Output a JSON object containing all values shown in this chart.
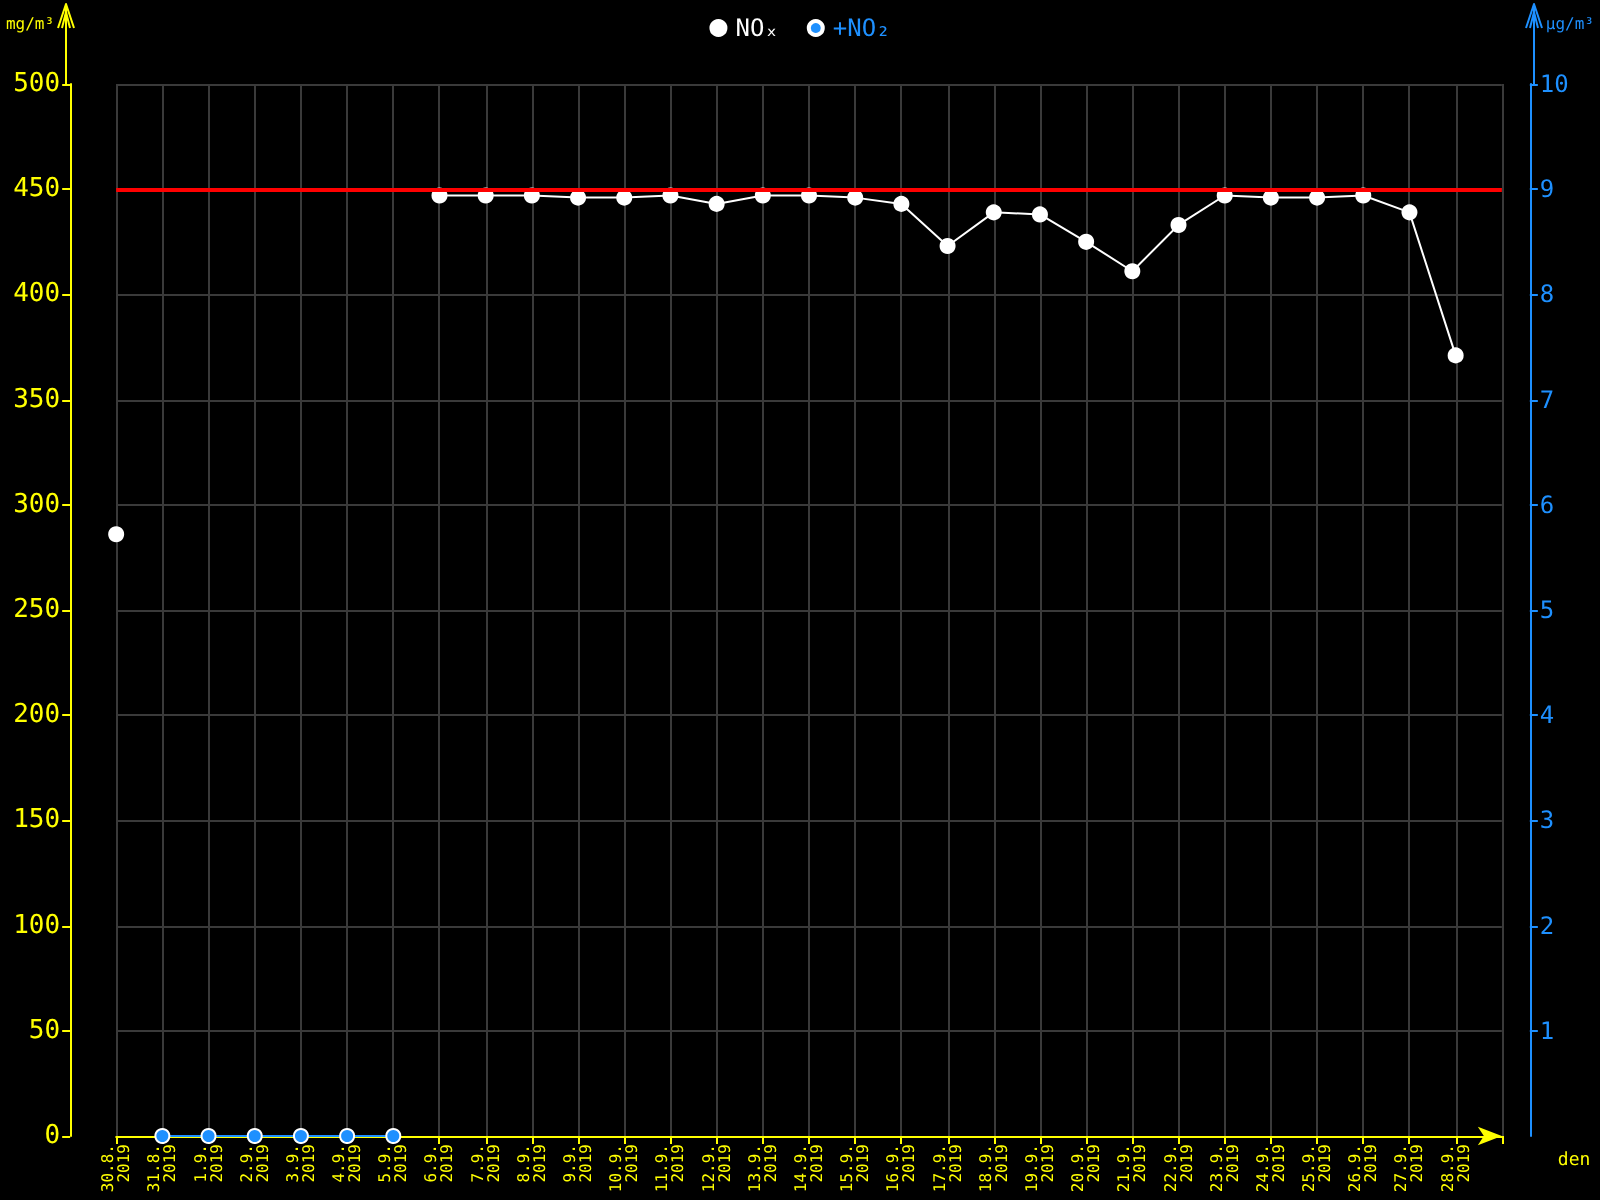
{
  "chart_data": {
    "type": "line",
    "xlabel": "den",
    "ylabel": "mg/m³",
    "y2label": "µg/m³",
    "categories": [
      "30.8. 2019",
      "31.8. 2019",
      "1.9. 2019",
      "2.9. 2019",
      "3.9. 2019",
      "4.9. 2019",
      "5.9. 2019",
      "6.9. 2019",
      "7.9. 2019",
      "8.9. 2019",
      "9.9. 2019",
      "10.9. 2019",
      "11.9. 2019",
      "12.9. 2019",
      "13.9. 2019",
      "14.9. 2019",
      "15.9. 2019",
      "16.9. 2019",
      "17.9. 2019",
      "18.9. 2019",
      "19.9. 2019",
      "20.9. 2019",
      "21.9. 2019",
      "22.9. 2019",
      "23.9. 2019",
      "24.9. 2019",
      "25.9. 2019",
      "26.9. 2019",
      "27.9. 2019",
      "28.9. 2019",
      null
    ],
    "series": [
      {
        "name": "NOₓ",
        "color": "#ffffff",
        "values": [
          286,
          null,
          null,
          null,
          null,
          null,
          null,
          447,
          447,
          447,
          446,
          446,
          447,
          443,
          447,
          447,
          446,
          443,
          423,
          439,
          438,
          425,
          411,
          433,
          447,
          446,
          446,
          447,
          439,
          371,
          null
        ]
      },
      {
        "name": "+NO₂",
        "color": "#1e90ff",
        "axis": "y2",
        "values": [
          null,
          0,
          0,
          0,
          0,
          0,
          0,
          null,
          null,
          null,
          null,
          null,
          null,
          null,
          null,
          null,
          null,
          null,
          null,
          null,
          null,
          null,
          null,
          null,
          null,
          null,
          null,
          null,
          null,
          null,
          null
        ]
      }
    ],
    "ylim": [
      0,
      500
    ],
    "yticks": [
      0,
      50,
      100,
      150,
      200,
      250,
      300,
      350,
      400,
      450,
      500
    ],
    "y2lim": [
      0,
      10
    ],
    "y2ticks": [
      1,
      2,
      3,
      4,
      5,
      6,
      7,
      8,
      9,
      10
    ],
    "ref_lines": [
      {
        "axis": "y",
        "value": 450,
        "color": "#ff0000"
      }
    ],
    "grid": true,
    "legend": "top",
    "marker": "circle"
  }
}
